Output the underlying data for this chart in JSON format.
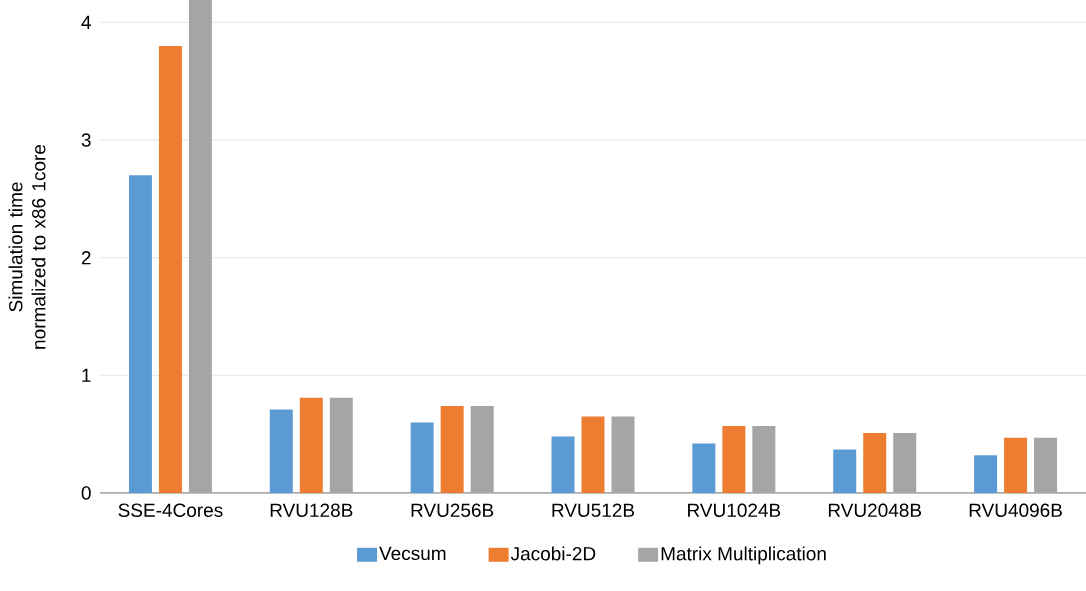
{
  "chart_data": {
    "type": "bar",
    "ylabel": "Simulation time\nnormalized to x86 1core",
    "categories": [
      "SSE-4Cores",
      "RVU128B",
      "RVU256B",
      "RVU512B",
      "RVU1024B",
      "RVU2048B",
      "RVU4096B"
    ],
    "series": [
      {
        "name": "Vecsum",
        "color": "#5b9bd5",
        "values": [
          2.7,
          0.71,
          0.6,
          0.48,
          0.42,
          0.37,
          0.32
        ]
      },
      {
        "name": "Jacobi-2D",
        "color": "#ed7d31",
        "values": [
          3.8,
          0.81,
          0.74,
          0.65,
          0.57,
          0.51,
          0.47
        ]
      },
      {
        "name": "Matrix Multiplication",
        "color": "#a5a5a5",
        "values": [
          4.19,
          0.81,
          0.74,
          0.65,
          0.57,
          0.51,
          0.47
        ]
      }
    ],
    "ylim": [
      0,
      4.19
    ],
    "yticks": [
      0,
      1,
      2,
      3,
      4
    ],
    "grid": "y",
    "legend": "bottom"
  }
}
